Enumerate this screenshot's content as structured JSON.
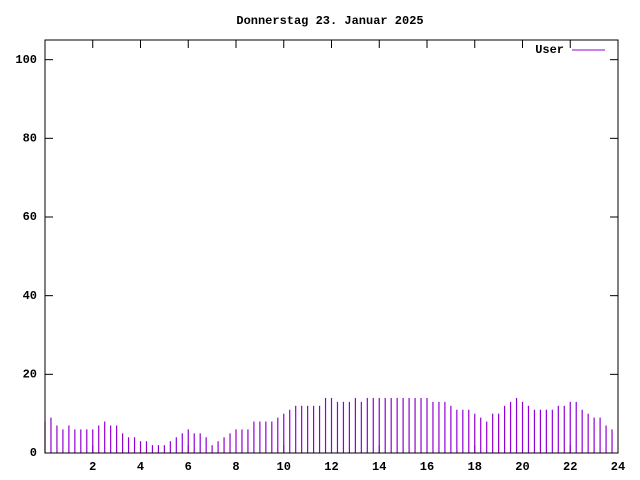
{
  "chart_data": {
    "type": "impulses",
    "title": "Donnerstag 23. Januar 2025",
    "x": [
      0,
      0.25,
      0.5,
      0.75,
      1,
      1.25,
      1.5,
      1.75,
      2,
      2.25,
      2.5,
      2.75,
      3,
      3.25,
      3.5,
      3.75,
      4,
      4.25,
      4.5,
      4.75,
      5,
      5.25,
      5.5,
      5.75,
      6,
      6.25,
      6.5,
      6.75,
      7,
      7.25,
      7.5,
      7.75,
      8,
      8.25,
      8.5,
      8.75,
      9,
      9.25,
      9.5,
      9.75,
      10,
      10.25,
      10.5,
      10.75,
      11,
      11.25,
      11.5,
      11.75,
      12,
      12.25,
      12.5,
      12.75,
      13,
      13.25,
      13.5,
      13.75,
      14,
      14.25,
      14.5,
      14.75,
      15,
      15.25,
      15.5,
      15.75,
      16,
      16.25,
      16.5,
      16.75,
      17,
      17.25,
      17.5,
      17.75,
      18,
      18.25,
      18.5,
      18.75,
      19,
      19.25,
      19.5,
      19.75,
      20,
      20.25,
      20.5,
      20.75,
      21,
      21.25,
      21.5,
      21.75,
      22,
      22.25,
      22.5,
      22.75,
      23,
      23.25,
      23.5,
      23.75
    ],
    "series": [
      {
        "name": "User",
        "color": "#9400d3",
        "values": [
          8,
          9,
          7,
          6,
          7,
          6,
          6,
          6,
          6,
          7,
          8,
          7,
          7,
          5,
          4,
          4,
          3,
          3,
          2,
          2,
          2,
          3,
          4,
          5,
          6,
          5,
          5,
          4,
          2,
          3,
          4,
          5,
          6,
          6,
          6,
          8,
          8,
          8,
          8,
          9,
          10,
          11,
          12,
          12,
          12,
          12,
          12,
          14,
          14,
          13,
          13,
          13,
          14,
          13,
          14,
          14,
          14,
          14,
          14,
          14,
          14,
          14,
          14,
          14,
          14,
          13,
          13,
          13,
          12,
          11,
          11,
          11,
          10,
          9,
          8,
          10,
          10,
          12,
          13,
          14,
          13,
          12,
          11,
          11,
          11,
          11,
          12,
          12,
          13,
          13,
          11,
          10,
          9,
          9,
          7,
          6
        ]
      }
    ],
    "xlim": [
      0,
      24
    ],
    "xticks": [
      2,
      4,
      6,
      8,
      10,
      12,
      14,
      16,
      18,
      20,
      22,
      24
    ],
    "ylim": [
      0,
      105
    ],
    "yticks": [
      0,
      20,
      40,
      60,
      80,
      100
    ],
    "legend": "top-right"
  }
}
